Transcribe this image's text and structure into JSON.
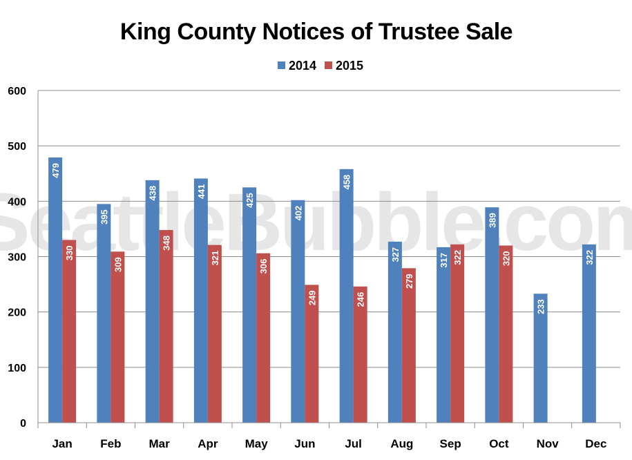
{
  "chart_data": {
    "type": "bar",
    "title": "King County Notices of Trustee Sale",
    "categories": [
      "Jan",
      "Feb",
      "Mar",
      "Apr",
      "May",
      "Jun",
      "Jul",
      "Aug",
      "Sep",
      "Oct",
      "Nov",
      "Dec"
    ],
    "series": [
      {
        "name": "2014",
        "values": [
          479,
          395,
          438,
          441,
          425,
          402,
          458,
          327,
          317,
          389,
          233,
          322
        ],
        "color": "#4f81bd"
      },
      {
        "name": "2015",
        "values": [
          330,
          309,
          348,
          321,
          306,
          249,
          246,
          279,
          322,
          320,
          null,
          null
        ],
        "color": "#c0504d"
      }
    ],
    "yticks": [
      0,
      100,
      200,
      300,
      400,
      500,
      600
    ],
    "ylim": [
      0,
      600
    ],
    "grid": true,
    "legend": "top-center",
    "data_labels": true,
    "watermark": "SeattleBubble.com"
  }
}
